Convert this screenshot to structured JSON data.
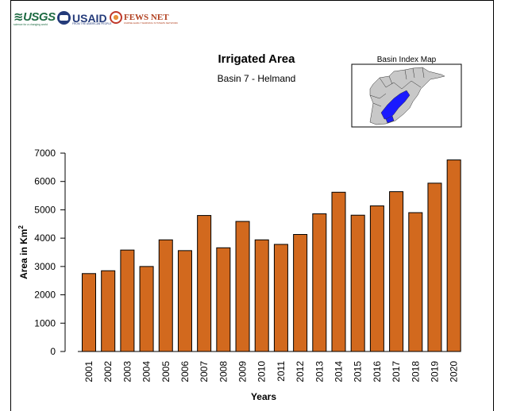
{
  "logos": {
    "usgs": {
      "mark": "≋USGS",
      "tagline": "science for a changing world"
    },
    "usaid": {
      "mark": "USAID",
      "tagline": "FROM THE AMERICAN PEOPLE"
    },
    "fews": {
      "mark": "FEWS NET",
      "tagline": "FAMINE EARLY WARNING SYSTEMS NETWORK"
    }
  },
  "inset": {
    "title": "Basin Index Map",
    "basin_color": "#1a1aff",
    "region_color": "#c8c8c8"
  },
  "chart_data": {
    "type": "bar",
    "title": "Irrigated Area",
    "subtitle": "Basin 7 - Helmand",
    "xlabel": "Years",
    "ylabel": "Area in Km",
    "ylabel_superscript": "2",
    "ylim": [
      0,
      7000
    ],
    "yticks": [
      0,
      1000,
      2000,
      3000,
      4000,
      5000,
      6000,
      7000
    ],
    "bar_color": "#d2691e",
    "categories": [
      "2001",
      "2002",
      "2003",
      "2004",
      "2005",
      "2006",
      "2007",
      "2008",
      "2009",
      "2010",
      "2011",
      "2012",
      "2013",
      "2014",
      "2015",
      "2016",
      "2017",
      "2018",
      "2019",
      "2020"
    ],
    "values": [
      2750,
      2850,
      3580,
      3000,
      3940,
      3560,
      4800,
      3660,
      4590,
      3940,
      3780,
      4130,
      4860,
      5620,
      4810,
      5140,
      5640,
      4900,
      5940,
      6760
    ]
  }
}
